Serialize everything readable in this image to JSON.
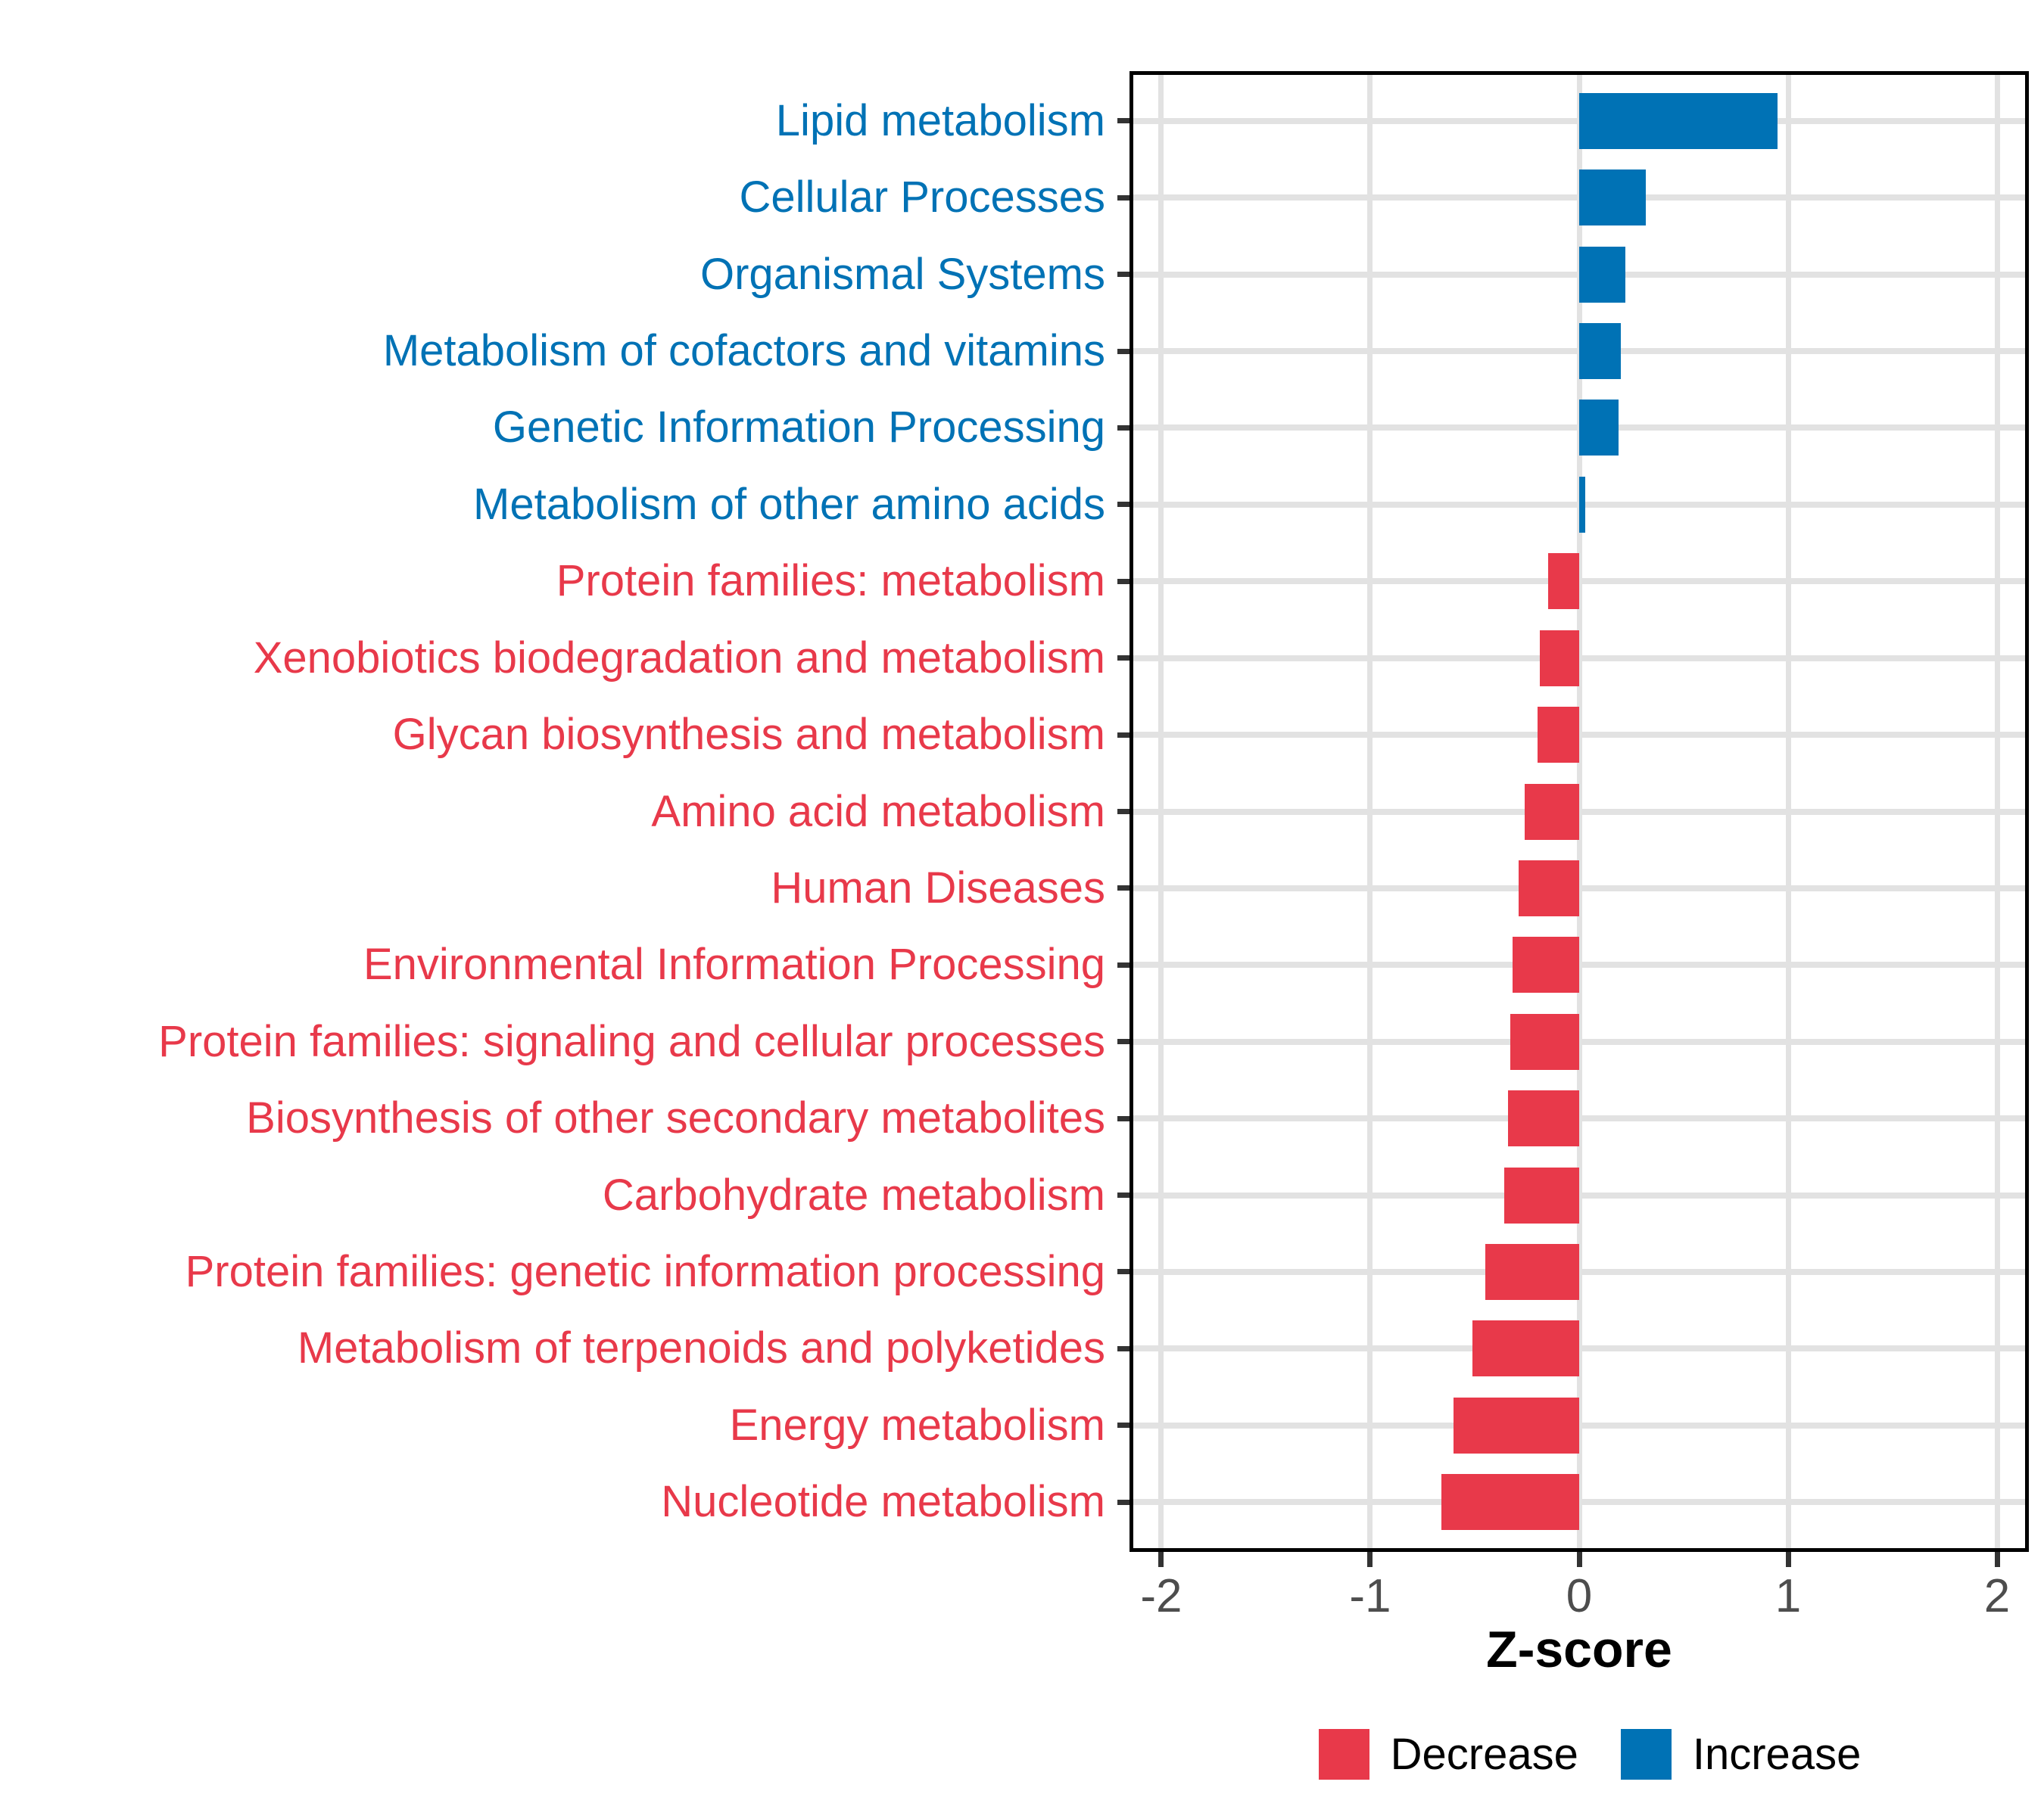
{
  "chart_data": {
    "type": "bar",
    "orientation": "horizontal",
    "title": "",
    "xlabel": "Z-score",
    "ylabel": "",
    "grid": true,
    "legend_position": "bottom",
    "x_domain": [
      -2.134,
      2.134
    ],
    "x_ticks": [
      {
        "label": "-2",
        "value": -2
      },
      {
        "label": "-1",
        "value": -1
      },
      {
        "label": "0",
        "value": 0
      },
      {
        "label": "1",
        "value": 1
      },
      {
        "label": "2",
        "value": 2
      }
    ],
    "categories": [
      "Lipid metabolism",
      "Cellular Processes",
      "Organismal Systems",
      "Metabolism of cofactors and vitamins",
      "Genetic Information Processing",
      "Metabolism of other amino acids",
      "Protein families: metabolism",
      "Xenobiotics biodegradation and metabolism",
      "Glycan biosynthesis and metabolism",
      "Amino acid metabolism",
      "Human Diseases",
      "Environmental Information Processing",
      "Protein families: signaling and cellular processes",
      "Biosynthesis of other secondary metabolites",
      "Carbohydrate metabolism",
      "Protein families: genetic information processing",
      "Metabolism of terpenoids and polyketides",
      "Energy metabolism",
      "Nucleotide metabolism"
    ],
    "values": [
      0.95,
      0.32,
      0.22,
      0.2,
      0.19,
      0.03,
      -0.15,
      -0.19,
      -0.2,
      -0.26,
      -0.29,
      -0.32,
      -0.33,
      -0.34,
      -0.36,
      -0.45,
      -0.51,
      -0.6,
      -0.66
    ],
    "directions": [
      "increase",
      "increase",
      "increase",
      "increase",
      "increase",
      "increase",
      "decrease",
      "decrease",
      "decrease",
      "decrease",
      "decrease",
      "decrease",
      "decrease",
      "decrease",
      "decrease",
      "decrease",
      "decrease",
      "decrease",
      "decrease"
    ],
    "legend": [
      {
        "label": "Decrease",
        "direction": "decrease"
      },
      {
        "label": "Increase",
        "direction": "increase"
      }
    ]
  },
  "colors": {
    "increase": "#0072B5",
    "decrease": "#E8394A",
    "grid": "#E2E2E2",
    "axis_tick_label": "#4D4D4D",
    "tick_mark": "#333333",
    "panel_border": "#000000",
    "background": "#FFFFFF"
  }
}
